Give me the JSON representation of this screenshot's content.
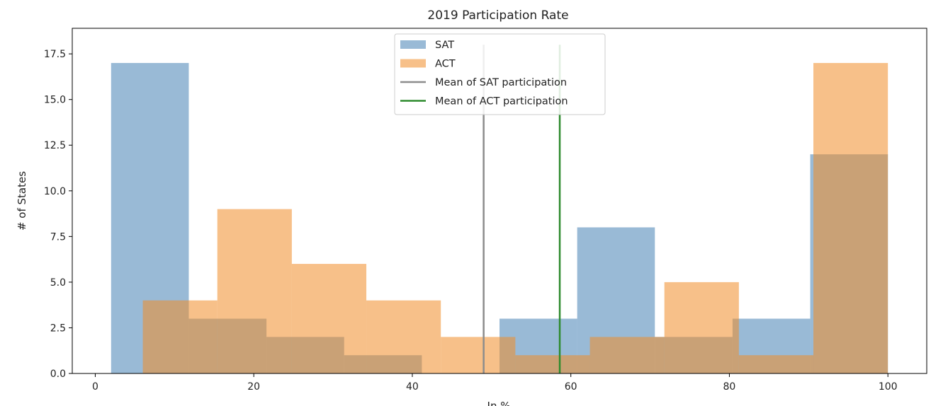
{
  "chart_data": {
    "type": "bar",
    "title": "2019 Participation Rate",
    "xlabel": "In %",
    "ylabel": "# of States",
    "xlim": [
      -2.9,
      104.9
    ],
    "ylim": [
      0,
      18.9
    ],
    "x_ticks": [
      "0",
      "20",
      "40",
      "60",
      "80",
      "100"
    ],
    "y_ticks": [
      "0.0",
      "2.5",
      "5.0",
      "7.5",
      "10.0",
      "12.5",
      "15.0",
      "17.5"
    ],
    "series": [
      {
        "name": "SAT",
        "color": "#4682b4",
        "opacity": 0.55,
        "bins": [
          {
            "x0": 2,
            "x1": 11.8,
            "count": 17
          },
          {
            "x0": 11.8,
            "x1": 21.6,
            "count": 3
          },
          {
            "x0": 21.6,
            "x1": 31.4,
            "count": 2
          },
          {
            "x0": 31.4,
            "x1": 41.2,
            "count": 1
          },
          {
            "x0": 41.2,
            "x1": 51.0,
            "count": 0
          },
          {
            "x0": 51.0,
            "x1": 60.8,
            "count": 3
          },
          {
            "x0": 60.8,
            "x1": 70.6,
            "count": 8
          },
          {
            "x0": 70.6,
            "x1": 80.4,
            "count": 2
          },
          {
            "x0": 80.4,
            "x1": 90.2,
            "count": 3
          },
          {
            "x0": 90.2,
            "x1": 100,
            "count": 12
          }
        ]
      },
      {
        "name": "ACT",
        "color": "#f08c28",
        "opacity": 0.55,
        "bins": [
          {
            "x0": 6,
            "x1": 15.4,
            "count": 4
          },
          {
            "x0": 15.4,
            "x1": 24.8,
            "count": 9
          },
          {
            "x0": 24.8,
            "x1": 34.2,
            "count": 6
          },
          {
            "x0": 34.2,
            "x1": 43.6,
            "count": 4
          },
          {
            "x0": 43.6,
            "x1": 53.0,
            "count": 2
          },
          {
            "x0": 53.0,
            "x1": 62.4,
            "count": 1
          },
          {
            "x0": 62.4,
            "x1": 71.8,
            "count": 2
          },
          {
            "x0": 71.8,
            "x1": 81.2,
            "count": 5
          },
          {
            "x0": 81.2,
            "x1": 90.6,
            "count": 1
          },
          {
            "x0": 90.6,
            "x1": 100,
            "count": 17
          }
        ]
      }
    ],
    "reference_lines": [
      {
        "name": "Mean of SAT participation",
        "x": 49.0,
        "y0": 0,
        "y1": 18,
        "color": "#8c8c8c"
      },
      {
        "name": "Mean of ACT participation",
        "x": 58.6,
        "y0": 0,
        "y1": 18,
        "color": "#2e8b2e"
      }
    ],
    "legend": {
      "placement": "top-center",
      "entries": [
        "SAT",
        "ACT",
        "Mean of SAT participation",
        "Mean of ACT participation"
      ]
    },
    "grid": false
  }
}
